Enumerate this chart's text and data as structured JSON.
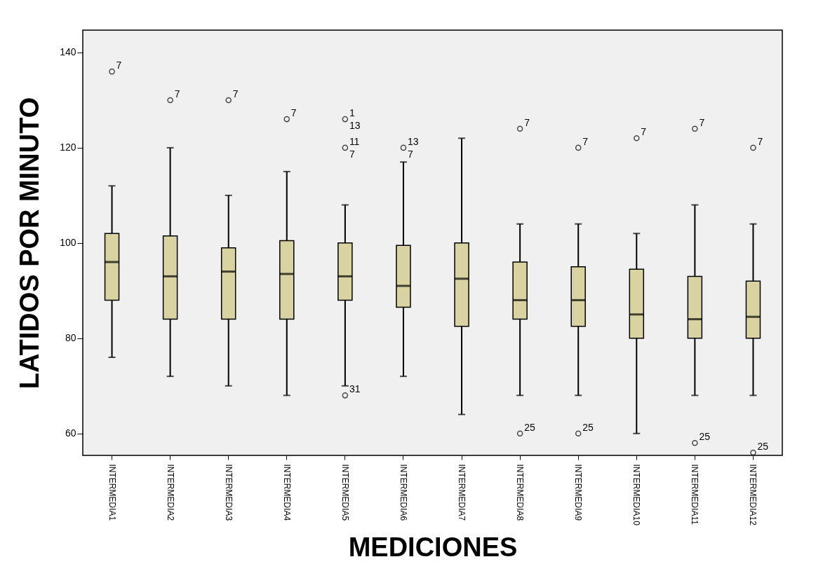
{
  "chart_data": {
    "type": "box",
    "xlabel": "MEDICIONES",
    "ylabel": "LATIDOS  POR  MINUTO",
    "categories": [
      "INTERMEDIA1",
      "INTERMEDIA2",
      "INTERMEDIA3",
      "INTERMEDIA4",
      "INTERMEDIA5",
      "INTERMEDIA6",
      "INTERMEDIA7",
      "INTERMEDIA8",
      "INTERMEDIA9",
      "INTERMEDIA10",
      "INTERMEDIA11",
      "INTERMEDIA12"
    ],
    "ylim": [
      55.4,
      144.7
    ],
    "yticks": [
      60,
      80,
      100,
      120,
      140
    ],
    "series": [
      {
        "color": "#d8d3a0",
        "boxes": [
          {
            "low": 76,
            "q1": 88,
            "median": 96,
            "q3": 102,
            "high": 112
          },
          {
            "low": 72,
            "q1": 84,
            "median": 93,
            "q3": 101.5,
            "high": 120
          },
          {
            "low": 70,
            "q1": 84,
            "median": 94,
            "q3": 99,
            "high": 110
          },
          {
            "low": 68,
            "q1": 84,
            "median": 93.5,
            "q3": 100.5,
            "high": 115
          },
          {
            "low": 70,
            "q1": 88,
            "median": 93,
            "q3": 100,
            "high": 108
          },
          {
            "low": 72,
            "q1": 86.5,
            "median": 91,
            "q3": 99.5,
            "high": 117
          },
          {
            "low": 64,
            "q1": 82.5,
            "median": 92.5,
            "q3": 100,
            "high": 122
          },
          {
            "low": 68,
            "q1": 84,
            "median": 88,
            "q3": 96,
            "high": 104
          },
          {
            "low": 68,
            "q1": 82.5,
            "median": 88,
            "q3": 95,
            "high": 104
          },
          {
            "low": 60,
            "q1": 80,
            "median": 85,
            "q3": 94.5,
            "high": 102
          },
          {
            "low": 68,
            "q1": 80,
            "median": 84,
            "q3": 93,
            "high": 108
          },
          {
            "low": 68,
            "q1": 80,
            "median": 84.5,
            "q3": 92,
            "high": 104
          }
        ]
      },
      {
        "type": "scatter",
        "color": "#000000",
        "marker": "circle",
        "x": [
          "INTERMEDIA1",
          "INTERMEDIA2",
          "INTERMEDIA3",
          "INTERMEDIA4",
          "INTERMEDIA5",
          "INTERMEDIA5",
          "INTERMEDIA5",
          "INTERMEDIA6",
          "INTERMEDIA8",
          "INTERMEDIA8",
          "INTERMEDIA9",
          "INTERMEDIA9",
          "INTERMEDIA10",
          "INTERMEDIA11",
          "INTERMEDIA11",
          "INTERMEDIA12",
          "INTERMEDIA12"
        ],
        "values": [
          136,
          130,
          130,
          126,
          126,
          120,
          68,
          120,
          124,
          60,
          120,
          60,
          122,
          124,
          58,
          120,
          56
        ]
      }
    ],
    "annotations": [
      {
        "text": "7",
        "x": "INTERMEDIA1",
        "y": 136
      },
      {
        "text": "7",
        "x": "INTERMEDIA2",
        "y": 130
      },
      {
        "text": "7",
        "x": "INTERMEDIA3",
        "y": 130
      },
      {
        "text": "7",
        "x": "INTERMEDIA4",
        "y": 126
      },
      {
        "text": "1",
        "x": "INTERMEDIA5",
        "y": 126
      },
      {
        "text": "13",
        "x": "INTERMEDIA5",
        "y": 126
      },
      {
        "text": "11",
        "x": "INTERMEDIA5",
        "y": 120
      },
      {
        "text": "7",
        "x": "INTERMEDIA5",
        "y": 120
      },
      {
        "text": "31",
        "x": "INTERMEDIA5",
        "y": 68
      },
      {
        "text": "13",
        "x": "INTERMEDIA6",
        "y": 120
      },
      {
        "text": "7",
        "x": "INTERMEDIA6",
        "y": 120
      },
      {
        "text": "7",
        "x": "INTERMEDIA8",
        "y": 124
      },
      {
        "text": "25",
        "x": "INTERMEDIA8",
        "y": 60
      },
      {
        "text": "7",
        "x": "INTERMEDIA9",
        "y": 120
      },
      {
        "text": "25",
        "x": "INTERMEDIA9",
        "y": 60
      },
      {
        "text": "7",
        "x": "INTERMEDIA10",
        "y": 122
      },
      {
        "text": "7",
        "x": "INTERMEDIA11",
        "y": 124
      },
      {
        "text": "25",
        "x": "INTERMEDIA11",
        "y": 58
      },
      {
        "text": "7",
        "x": "INTERMEDIA12",
        "y": 120
      },
      {
        "text": "25",
        "x": "INTERMEDIA12",
        "y": 56
      }
    ]
  }
}
